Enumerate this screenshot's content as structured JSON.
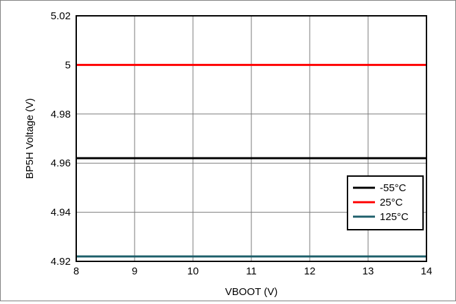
{
  "chart_data": {
    "type": "line",
    "title": "",
    "xlabel": "VBOOT (V)",
    "ylabel": "BP5H Voltage (V)",
    "xlim": [
      8,
      14
    ],
    "ylim": [
      4.92,
      5.02
    ],
    "x_ticks": [
      8,
      9,
      10,
      11,
      12,
      13,
      14
    ],
    "y_ticks": [
      4.92,
      4.94,
      4.96,
      4.98,
      5,
      5.02
    ],
    "x_tick_labels": [
      "8",
      "9",
      "10",
      "11",
      "12",
      "13",
      "14"
    ],
    "y_tick_labels": [
      "4.92",
      "4.94",
      "4.96",
      "4.98",
      "5",
      "5.02"
    ],
    "grid": true,
    "legend_position": "right, lower-middle",
    "series": [
      {
        "name": "-55°C",
        "color": "#000000",
        "x": [
          8,
          14
        ],
        "y": [
          4.962,
          4.962
        ]
      },
      {
        "name": "25°C",
        "color": "#ff0000",
        "x": [
          8,
          14
        ],
        "y": [
          5.0,
          5.0
        ]
      },
      {
        "name": "125°C",
        "color": "#1e5f6b",
        "x": [
          8,
          14
        ],
        "y": [
          4.922,
          4.922
        ]
      }
    ]
  }
}
